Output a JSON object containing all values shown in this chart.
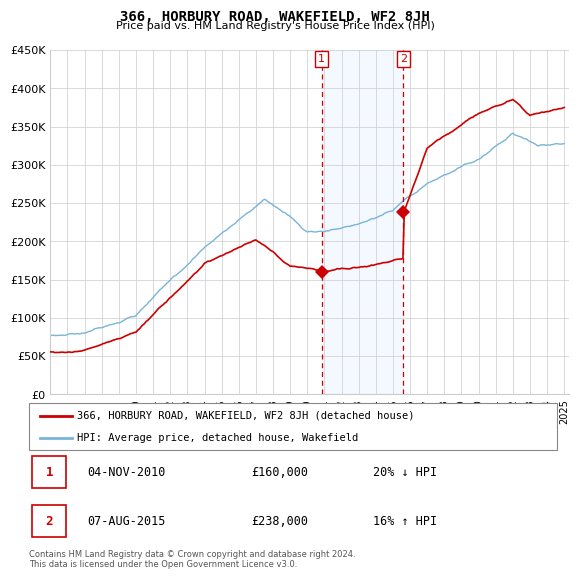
{
  "title": "366, HORBURY ROAD, WAKEFIELD, WF2 8JH",
  "subtitle": "Price paid vs. HM Land Registry's House Price Index (HPI)",
  "ylim": [
    0,
    450000
  ],
  "yticks": [
    0,
    50000,
    100000,
    150000,
    200000,
    250000,
    300000,
    350000,
    400000,
    450000
  ],
  "ytick_labels": [
    "£0",
    "£50K",
    "£100K",
    "£150K",
    "£200K",
    "£250K",
    "£300K",
    "£350K",
    "£400K",
    "£450K"
  ],
  "xlim_start": 1995.0,
  "xlim_end": 2025.3,
  "transaction1_year": 2010.84,
  "transaction1_price": 160000,
  "transaction2_year": 2015.6,
  "transaction2_price": 238000,
  "hpi_color": "#7ab4d8",
  "price_color": "#cc0000",
  "shade_color": "#ddeeff",
  "legend_label_price": "366, HORBURY ROAD, WAKEFIELD, WF2 8JH (detached house)",
  "legend_label_hpi": "HPI: Average price, detached house, Wakefield",
  "footer": "Contains HM Land Registry data © Crown copyright and database right 2024.\nThis data is licensed under the Open Government Licence v3.0.",
  "table_rows": [
    {
      "box": "1",
      "date": "04-NOV-2010",
      "price": "£160,000",
      "pct": "20% ↓ HPI"
    },
    {
      "box": "2",
      "date": "07-AUG-2015",
      "price": "£238,000",
      "pct": "16% ↑ HPI"
    }
  ]
}
